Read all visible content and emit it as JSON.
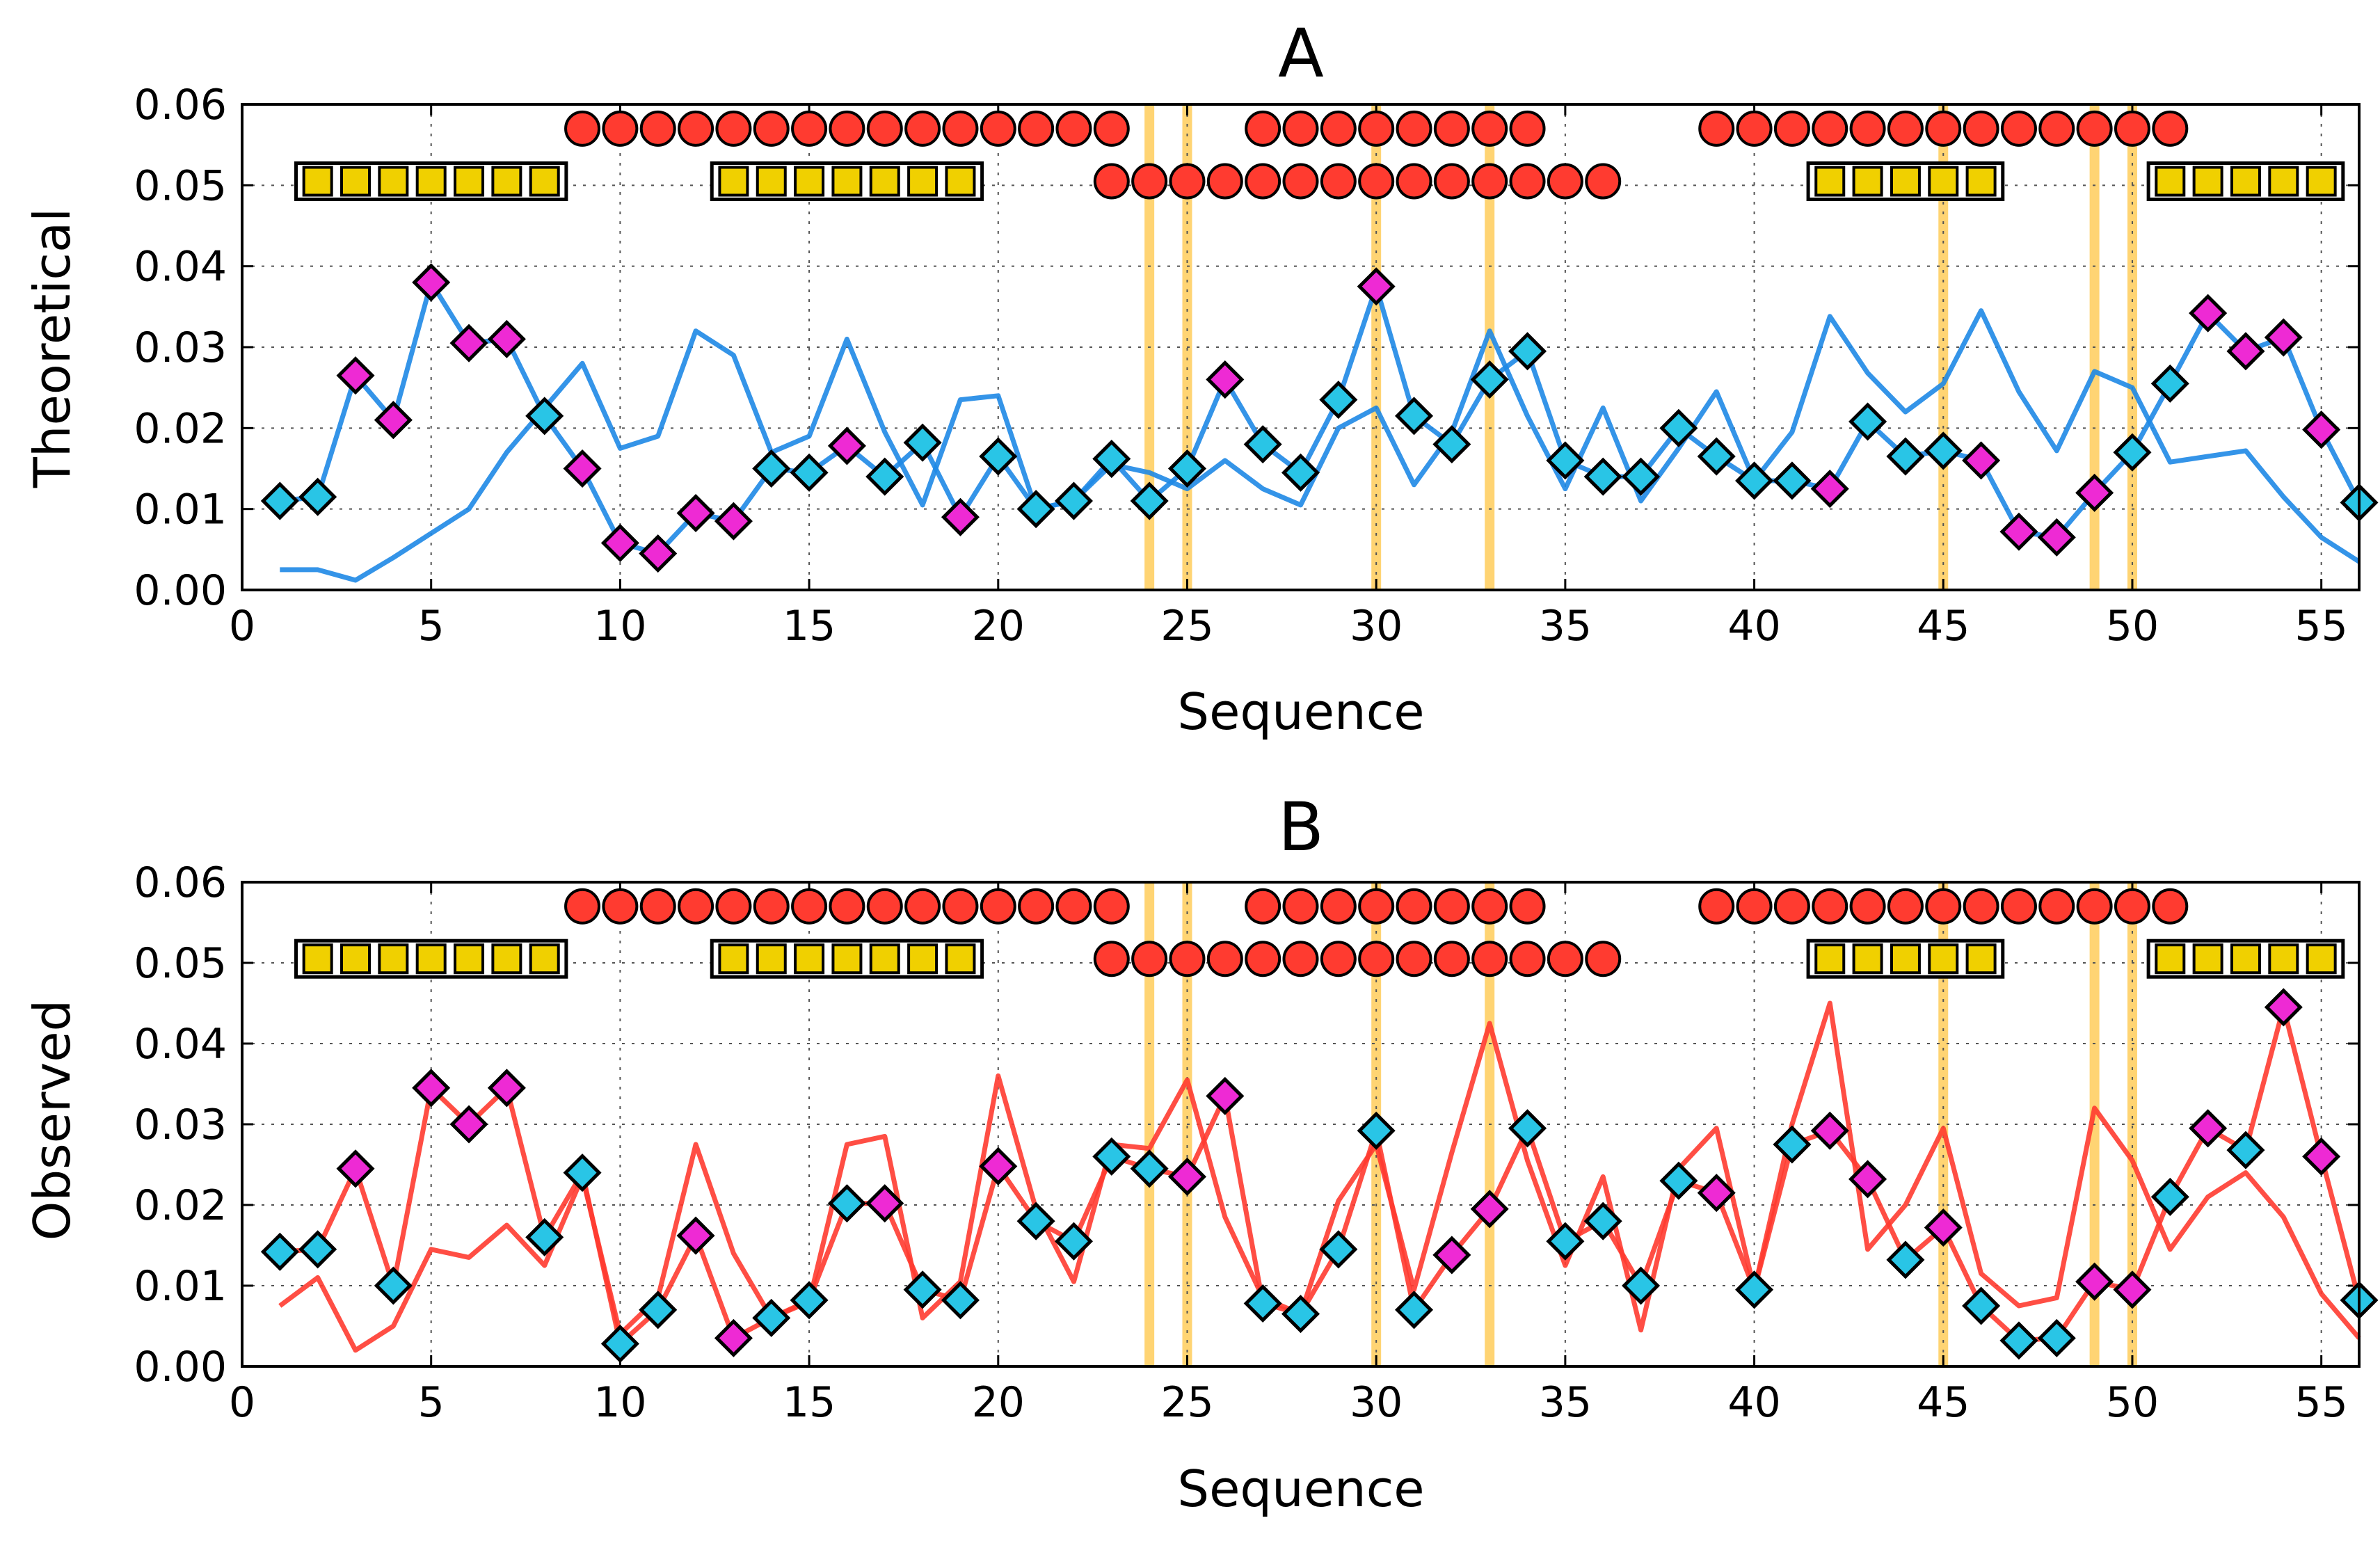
{
  "chart_data": [
    {
      "type": "line",
      "panel": "A",
      "title": "A",
      "xlabel": "Sequence",
      "ylabel": "Theoretical",
      "xlim": [
        0,
        56
      ],
      "ylim": [
        0,
        0.06
      ],
      "xticks": [
        "0",
        "5",
        "10",
        "15",
        "20",
        "25",
        "30",
        "35",
        "40",
        "45",
        "50",
        "55"
      ],
      "yticks": [
        "0.00",
        "0.01",
        "0.02",
        "0.03",
        "0.04",
        "0.05",
        "0.06"
      ],
      "grid": true,
      "highlight_positions": [
        24,
        25,
        30,
        33,
        45,
        49,
        50
      ],
      "series": [
        {
          "name": "markers",
          "color": "#1e88e5",
          "marker": "diamond",
          "x": [
            1,
            2,
            3,
            4,
            5,
            6,
            7,
            8,
            9,
            10,
            11,
            12,
            13,
            14,
            15,
            16,
            17,
            18,
            19,
            20,
            21,
            22,
            23,
            24,
            25,
            26,
            27,
            28,
            29,
            30,
            31,
            32,
            33,
            34,
            35,
            36,
            37,
            38,
            39,
            40,
            41,
            42,
            43,
            44,
            45,
            46,
            47,
            48,
            49,
            50,
            51,
            52,
            53,
            54,
            55,
            56
          ],
          "values": [
            0.011,
            0.0115,
            0.0265,
            0.021,
            0.038,
            0.0305,
            0.031,
            0.0215,
            0.015,
            0.0058,
            0.0045,
            0.0095,
            0.0085,
            0.015,
            0.0145,
            0.0178,
            0.014,
            0.0182,
            0.009,
            0.0165,
            0.01,
            0.011,
            0.0162,
            0.011,
            0.015,
            0.026,
            0.018,
            0.0145,
            0.0235,
            0.0375,
            0.0215,
            0.018,
            0.026,
            0.0295,
            0.016,
            0.014,
            0.014,
            0.02,
            0.0165,
            0.0135,
            0.0135,
            0.0125,
            0.0208,
            0.0165,
            0.0172,
            0.016,
            0.0072,
            0.0065,
            0.012,
            0.017,
            0.0255,
            0.0342,
            0.0295,
            0.0312,
            0.0198,
            0.0108
          ],
          "marker_colors": [
            "cyan",
            "cyan",
            "magenta",
            "magenta",
            "magenta",
            "magenta",
            "magenta",
            "cyan",
            "magenta",
            "magenta",
            "magenta",
            "magenta",
            "magenta",
            "cyan",
            "cyan",
            "magenta",
            "cyan",
            "cyan",
            "magenta",
            "cyan",
            "cyan",
            "cyan",
            "cyan",
            "cyan",
            "cyan",
            "magenta",
            "cyan",
            "cyan",
            "cyan",
            "magenta",
            "cyan",
            "cyan",
            "cyan",
            "cyan",
            "cyan",
            "cyan",
            "cyan",
            "cyan",
            "cyan",
            "cyan",
            "cyan",
            "magenta",
            "cyan",
            "cyan",
            "cyan",
            "magenta",
            "magenta",
            "magenta",
            "magenta",
            "cyan",
            "cyan",
            "magenta",
            "magenta",
            "magenta",
            "magenta",
            "cyan"
          ]
        },
        {
          "name": "line",
          "color": "#1e88e5",
          "x": [
            1,
            2,
            3,
            4,
            5,
            6,
            7,
            8,
            9,
            10,
            11,
            12,
            13,
            14,
            15,
            16,
            17,
            18,
            19,
            20,
            21,
            22,
            23,
            24,
            25,
            26,
            27,
            28,
            29,
            30,
            31,
            32,
            33,
            34,
            35,
            36,
            37,
            38,
            39,
            40,
            41,
            42,
            43,
            44,
            45,
            46,
            47,
            48,
            49,
            50,
            51,
            52,
            53,
            54,
            55,
            56
          ],
          "values": [
            0.0025,
            0.0025,
            0.0012,
            0.004,
            0.007,
            0.01,
            0.017,
            0.0225,
            0.028,
            0.0175,
            0.019,
            0.032,
            0.029,
            0.017,
            0.019,
            0.031,
            0.0195,
            0.0105,
            0.0235,
            0.024,
            0.01,
            0.011,
            0.0155,
            0.0145,
            0.0125,
            0.016,
            0.0125,
            0.0105,
            0.02,
            0.0225,
            0.013,
            0.0195,
            0.032,
            0.0215,
            0.0125,
            0.0225,
            0.011,
            0.0175,
            0.0245,
            0.0135,
            0.0195,
            0.0338,
            0.0268,
            0.022,
            0.0255,
            0.0345,
            0.0245,
            0.0172,
            0.027,
            0.025,
            0.0158,
            0.0165,
            0.0172,
            0.0115,
            0.0065,
            0.0035
          ]
        }
      ],
      "annotation_tracks": [
        {
          "shape": "square",
          "color": "#f0d000",
          "level": 0.0505,
          "ranges": [
            [
              2,
              8
            ],
            [
              13,
              19
            ],
            [
              42,
              46
            ],
            [
              51,
              55
            ]
          ]
        },
        {
          "shape": "circle",
          "color": "#ff3b30",
          "level": 0.057,
          "ranges": [
            [
              9,
              23
            ],
            [
              27,
              34
            ],
            [
              39,
              51
            ]
          ]
        },
        {
          "shape": "circle",
          "color": "#ff3b30",
          "level": 0.0505,
          "ranges": [
            [
              23,
              36
            ]
          ]
        }
      ]
    },
    {
      "type": "line",
      "panel": "B",
      "title": "B",
      "xlabel": "Sequence",
      "ylabel": "Observed",
      "xlim": [
        0,
        56
      ],
      "ylim": [
        0,
        0.06
      ],
      "xticks": [
        "0",
        "5",
        "10",
        "15",
        "20",
        "25",
        "30",
        "35",
        "40",
        "45",
        "50",
        "55"
      ],
      "yticks": [
        "0.00",
        "0.01",
        "0.02",
        "0.03",
        "0.04",
        "0.05",
        "0.06"
      ],
      "grid": true,
      "highlight_positions": [
        24,
        25,
        30,
        33,
        45,
        49,
        50
      ],
      "series": [
        {
          "name": "markers",
          "color": "#ff3b30",
          "marker": "diamond",
          "x": [
            1,
            2,
            3,
            4,
            5,
            6,
            7,
            8,
            9,
            10,
            11,
            12,
            13,
            14,
            15,
            16,
            17,
            18,
            19,
            20,
            21,
            22,
            23,
            24,
            25,
            26,
            27,
            28,
            29,
            30,
            31,
            32,
            33,
            34,
            35,
            36,
            37,
            38,
            39,
            40,
            41,
            42,
            43,
            44,
            45,
            46,
            47,
            48,
            49,
            50,
            51,
            52,
            53,
            54,
            55,
            56
          ],
          "values": [
            0.0142,
            0.0145,
            0.0245,
            0.01,
            0.0345,
            0.03,
            0.0345,
            0.016,
            0.024,
            0.0028,
            0.007,
            0.0162,
            0.0035,
            0.006,
            0.0082,
            0.0202,
            0.0202,
            0.0095,
            0.0082,
            0.0248,
            0.018,
            0.0155,
            0.026,
            0.0245,
            0.0235,
            0.0335,
            0.0078,
            0.0065,
            0.0145,
            0.0292,
            0.007,
            0.0138,
            0.0195,
            0.0295,
            0.0155,
            0.018,
            0.01,
            0.023,
            0.0215,
            0.0095,
            0.0275,
            0.0292,
            0.0232,
            0.0132,
            0.0172,
            0.0075,
            0.0032,
            0.0035,
            0.0105,
            0.0095,
            0.021,
            0.0295,
            0.0268,
            0.0445,
            0.026,
            0.0082
          ],
          "marker_colors": [
            "cyan",
            "cyan",
            "magenta",
            "cyan",
            "magenta",
            "magenta",
            "magenta",
            "cyan",
            "cyan",
            "cyan",
            "cyan",
            "magenta",
            "magenta",
            "cyan",
            "cyan",
            "cyan",
            "magenta",
            "cyan",
            "cyan",
            "magenta",
            "cyan",
            "cyan",
            "cyan",
            "cyan",
            "magenta",
            "magenta",
            "cyan",
            "cyan",
            "cyan",
            "cyan",
            "cyan",
            "magenta",
            "magenta",
            "cyan",
            "cyan",
            "cyan",
            "cyan",
            "cyan",
            "magenta",
            "cyan",
            "cyan",
            "magenta",
            "magenta",
            "cyan",
            "magenta",
            "cyan",
            "cyan",
            "cyan",
            "magenta",
            "magenta",
            "cyan",
            "magenta",
            "cyan",
            "magenta",
            "magenta",
            "cyan"
          ]
        },
        {
          "name": "line",
          "color": "#ff3b30",
          "x": [
            1,
            2,
            3,
            4,
            5,
            6,
            7,
            8,
            9,
            10,
            11,
            12,
            13,
            14,
            15,
            16,
            17,
            18,
            19,
            20,
            21,
            22,
            23,
            24,
            25,
            26,
            27,
            28,
            29,
            30,
            31,
            32,
            33,
            34,
            35,
            36,
            37,
            38,
            39,
            40,
            41,
            42,
            43,
            44,
            45,
            46,
            47,
            48,
            49,
            50,
            51,
            52,
            53,
            54,
            55,
            56
          ],
          "values": [
            0.0075,
            0.011,
            0.002,
            0.005,
            0.0145,
            0.0135,
            0.0175,
            0.0125,
            0.0235,
            0.004,
            0.0085,
            0.0275,
            0.014,
            0.006,
            0.008,
            0.0275,
            0.0285,
            0.006,
            0.0105,
            0.036,
            0.0195,
            0.0105,
            0.0275,
            0.027,
            0.0355,
            0.0185,
            0.0085,
            0.0065,
            0.0205,
            0.0275,
            0.0095,
            0.0265,
            0.0425,
            0.0255,
            0.0125,
            0.0235,
            0.0045,
            0.0245,
            0.0295,
            0.0095,
            0.03,
            0.045,
            0.0145,
            0.02,
            0.0295,
            0.0115,
            0.0075,
            0.0085,
            0.032,
            0.0255,
            0.0145,
            0.021,
            0.024,
            0.0185,
            0.009,
            0.0035
          ]
        }
      ],
      "annotation_tracks": [
        {
          "shape": "square",
          "color": "#f0d000",
          "level": 0.0505,
          "ranges": [
            [
              2,
              8
            ],
            [
              13,
              19
            ],
            [
              42,
              46
            ],
            [
              51,
              55
            ]
          ]
        },
        {
          "shape": "circle",
          "color": "#ff3b30",
          "level": 0.057,
          "ranges": [
            [
              9,
              23
            ],
            [
              27,
              34
            ],
            [
              39,
              51
            ]
          ]
        },
        {
          "shape": "circle",
          "color": "#ff3b30",
          "level": 0.0505,
          "ranges": [
            [
              23,
              36
            ]
          ]
        }
      ]
    }
  ],
  "colors": {
    "highlight": "#ffb000",
    "marker_cyan": "#29c5e6",
    "marker_magenta": "#ee2ad4",
    "square": "#f0d000",
    "circle": "#ff3b30",
    "grid": "#555555"
  }
}
